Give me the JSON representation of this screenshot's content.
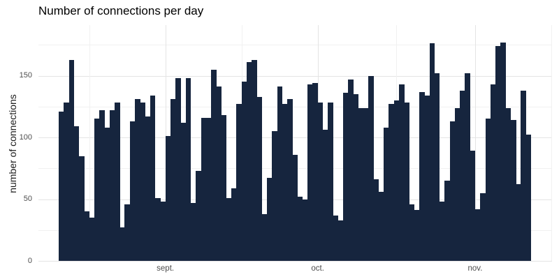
{
  "chart_data": {
    "type": "bar",
    "title": "Number of connections per day",
    "ylabel": "number of connections",
    "xlabel": "",
    "values": [
      121,
      128,
      163,
      109,
      85,
      40,
      35,
      115,
      122,
      108,
      122,
      128,
      27,
      46,
      113,
      131,
      128,
      117,
      134,
      51,
      48,
      101,
      131,
      148,
      112,
      148,
      47,
      73,
      116,
      116,
      155,
      141,
      118,
      51,
      59,
      127,
      145,
      161,
      163,
      133,
      38,
      67,
      105,
      141,
      127,
      131,
      86,
      52,
      50,
      143,
      144,
      128,
      106,
      128,
      37,
      33,
      136,
      147,
      135,
      124,
      124,
      150,
      66,
      56,
      108,
      127,
      130,
      143,
      128,
      46,
      41,
      137,
      134,
      176,
      152,
      48,
      65,
      113,
      124,
      138,
      152,
      89,
      42,
      55,
      115,
      143,
      174,
      177,
      124,
      114,
      62,
      138,
      102
    ],
    "x_tick_labels": [
      "sept.",
      "oct.",
      "nov."
    ],
    "x_tick_bar_centers": [
      20.5,
      50.5,
      81.5
    ],
    "y_major_ticks": [
      0,
      50,
      100,
      150
    ],
    "y_minor_ticks": [
      25,
      75,
      125,
      175
    ],
    "ylim": [
      0,
      191
    ],
    "legend": "none",
    "grid": "on",
    "colors": {
      "bar": "#16253e",
      "grid_major": "#e4e4e4",
      "grid_minor": "#f1f1f1",
      "axis_text": "#4d4d4d",
      "title": "#000000",
      "background": "#ffffff"
    }
  }
}
